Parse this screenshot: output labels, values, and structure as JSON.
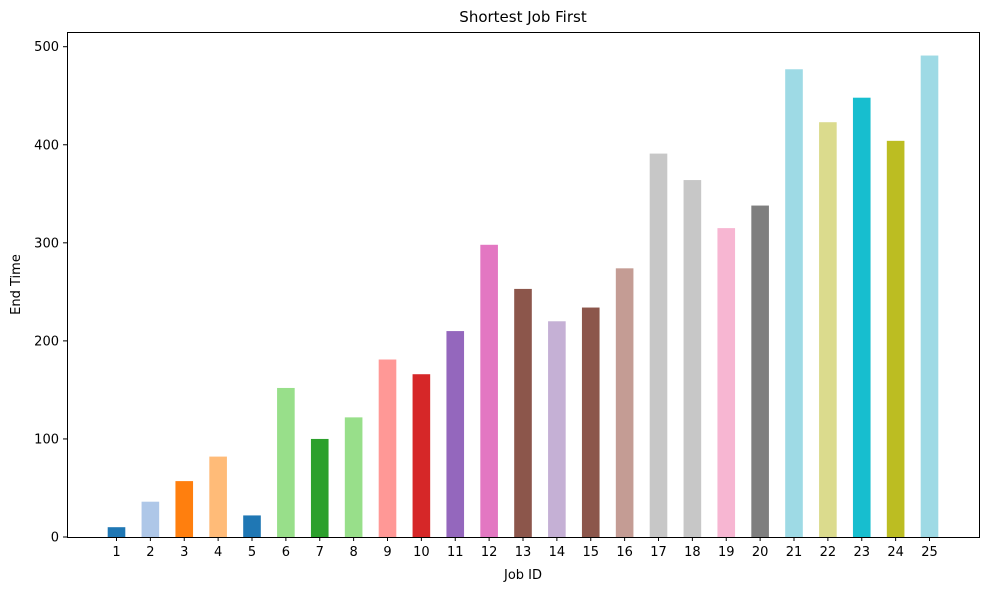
{
  "chart_data": {
    "type": "bar",
    "title": "Shortest Job First",
    "xlabel": "Job ID",
    "ylabel": "End Time",
    "ylim": [
      0,
      515
    ],
    "yticks": [
      0,
      100,
      200,
      300,
      400,
      500
    ],
    "grid": false,
    "legend": "none",
    "categories": [
      "1",
      "2",
      "3",
      "4",
      "5",
      "6",
      "7",
      "8",
      "9",
      "10",
      "11",
      "12",
      "13",
      "14",
      "15",
      "16",
      "17",
      "18",
      "19",
      "20",
      "21",
      "22",
      "23",
      "24",
      "25"
    ],
    "values": [
      10,
      36,
      57,
      82,
      22,
      152,
      100,
      122,
      181,
      166,
      210,
      298,
      253,
      220,
      234,
      274,
      391,
      364,
      315,
      338,
      477,
      423,
      448,
      404,
      491
    ],
    "colors": [
      "#1f77b4",
      "#aec7e8",
      "#ff7f0e",
      "#ffbb78",
      "#1f77b4",
      "#98df8a",
      "#2ca02c",
      "#98df8a",
      "#ff9896",
      "#d62728",
      "#9467bd",
      "#e377c2",
      "#8c564b",
      "#c5b0d5",
      "#8c564b",
      "#c49c94",
      "#c7c7c7",
      "#c7c7c7",
      "#f7b6d2",
      "#7f7f7f",
      "#9edae5",
      "#dbdb8d",
      "#17becf",
      "#bcbd22",
      "#9edae5"
    ]
  }
}
